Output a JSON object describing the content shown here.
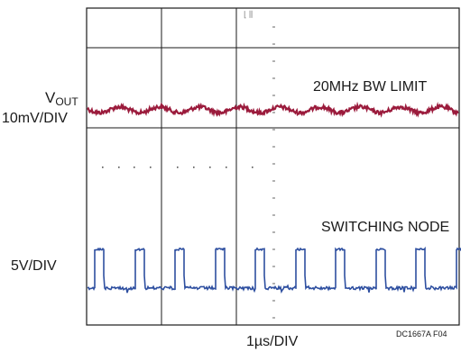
{
  "chart_data": {
    "type": "line",
    "title": "",
    "xlabel": "1µs/DIV",
    "grid": true,
    "series": [
      {
        "name": "VOUT",
        "label_main": "V",
        "label_sub": "OUT",
        "scale": "10mV/DIV",
        "color": "#9b1b3c",
        "description_label": "20MHz BW LIMIT"
      },
      {
        "name": "SWITCHING NODE",
        "scale": "5V/DIV",
        "color": "#2e4fa0",
        "description_label": "SWITCHING NODE"
      }
    ],
    "annotation": "DC1667A F04"
  }
}
